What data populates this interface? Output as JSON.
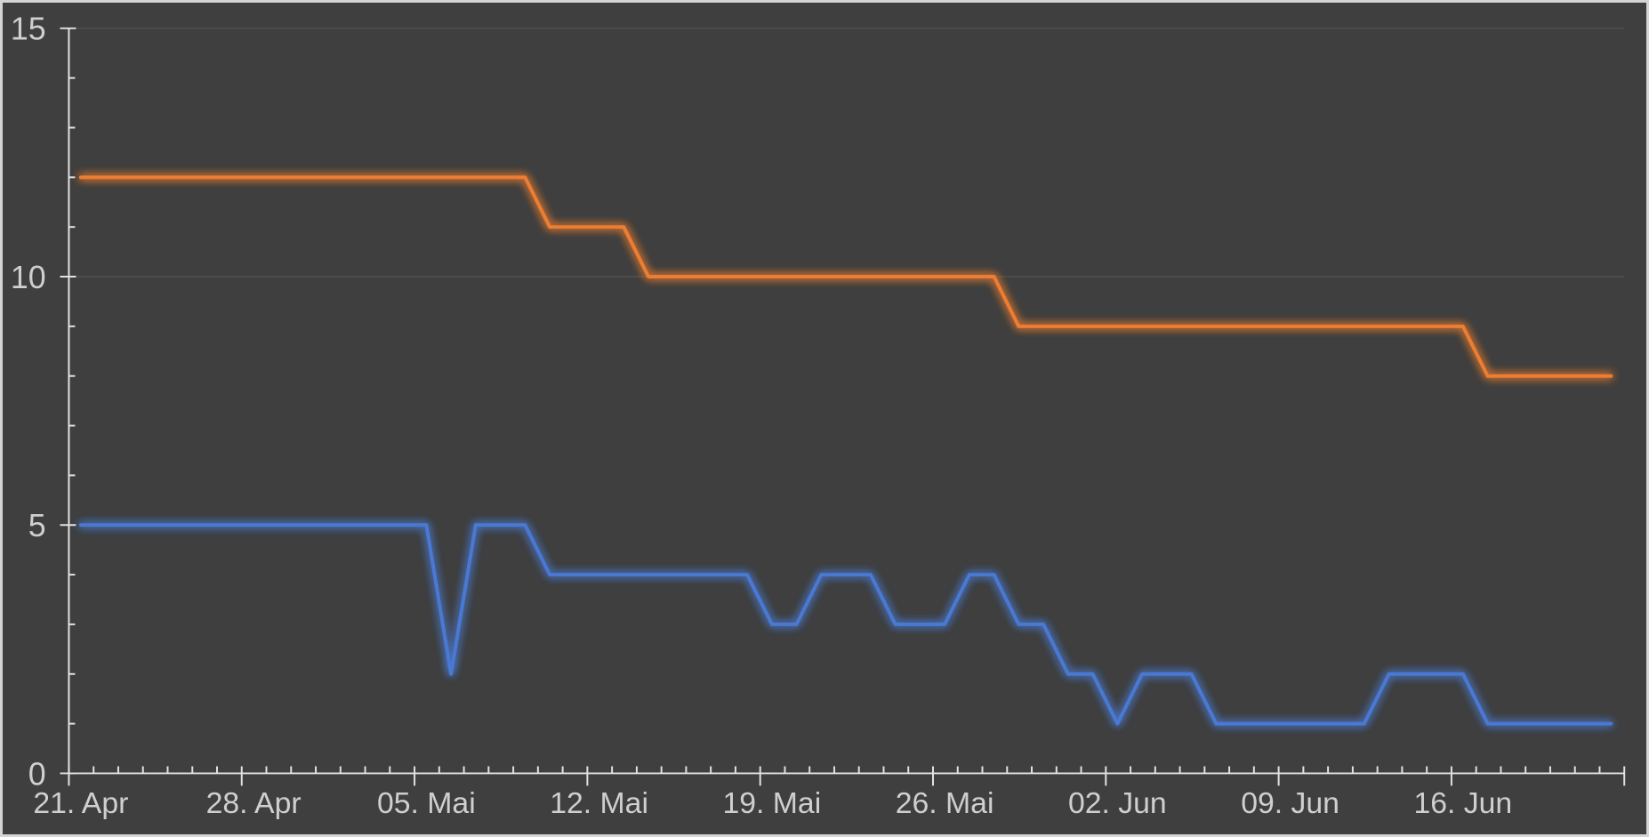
{
  "chart_data": {
    "type": "line",
    "title": "",
    "xlabel": "",
    "ylabel": "",
    "ylim": [
      0,
      15
    ],
    "y_ticks": [
      0,
      5,
      10,
      15
    ],
    "y_minor_tick_step": 1,
    "grid_y": [
      10,
      15
    ],
    "legend": "none",
    "x_tick_labels": [
      "21. Apr",
      "28. Apr",
      "05. Mai",
      "12. Mai",
      "19. Mai",
      "26. Mai",
      "02. Jun",
      "09. Jun",
      "16. Jun"
    ],
    "x": [
      "21. Apr",
      "22. Apr",
      "23. Apr",
      "24. Apr",
      "25. Apr",
      "26. Apr",
      "27. Apr",
      "28. Apr",
      "29. Apr",
      "30. Apr",
      "01. Mai",
      "02. Mai",
      "03. Mai",
      "04. Mai",
      "05. Mai",
      "06. Mai",
      "07. Mai",
      "08. Mai",
      "09. Mai",
      "10. Mai",
      "11. Mai",
      "12. Mai",
      "13. Mai",
      "14. Mai",
      "15. Mai",
      "16. Mai",
      "17. Mai",
      "18. Mai",
      "19. Mai",
      "20. Mai",
      "21. Mai",
      "22. Mai",
      "23. Mai",
      "24. Mai",
      "25. Mai",
      "26. Mai",
      "27. Mai",
      "28. Mai",
      "29. Mai",
      "30. Mai",
      "31. Mai",
      "01. Jun",
      "02. Jun",
      "03. Jun",
      "04. Jun",
      "05. Jun",
      "06. Jun",
      "07. Jun",
      "08. Jun",
      "09. Jun",
      "10. Jun",
      "11. Jun",
      "12. Jun",
      "13. Jun",
      "14. Jun",
      "15. Jun",
      "16. Jun",
      "17. Jun",
      "18. Jun",
      "19. Jun",
      "20. Jun",
      "21. Jun",
      "22. Jun"
    ],
    "series": [
      {
        "name": "orange",
        "color": "#ED7D31",
        "values": [
          12,
          12,
          12,
          12,
          12,
          12,
          12,
          12,
          12,
          12,
          12,
          12,
          12,
          12,
          12,
          12,
          12,
          12,
          12,
          11,
          11,
          11,
          11,
          10,
          10,
          10,
          10,
          10,
          10,
          10,
          10,
          10,
          10,
          10,
          10,
          10,
          10,
          10,
          9,
          9,
          9,
          9,
          9,
          9,
          9,
          9,
          9,
          9,
          9,
          9,
          9,
          9,
          9,
          9,
          9,
          9,
          9,
          8,
          8,
          8,
          8,
          8,
          8
        ]
      },
      {
        "name": "blue",
        "color": "#4A79D2",
        "values": [
          5,
          5,
          5,
          5,
          5,
          5,
          5,
          5,
          5,
          5,
          5,
          5,
          5,
          5,
          5,
          2,
          5,
          5,
          5,
          4,
          4,
          4,
          4,
          4,
          4,
          4,
          4,
          4,
          3,
          3,
          4,
          4,
          4,
          3,
          3,
          3,
          4,
          4,
          3,
          3,
          2,
          2,
          1,
          2,
          2,
          2,
          1,
          1,
          1,
          1,
          1,
          1,
          1,
          2,
          2,
          2,
          2,
          1,
          1,
          1,
          1,
          1,
          1
        ]
      }
    ],
    "colors": {
      "background": "#3F3F3F",
      "frame_border": "#D5D5D5",
      "axis": "#E2E2E2",
      "tick": "#E2E2E2",
      "label": "#CFCFCF",
      "gridline": "#4C4C4C"
    }
  }
}
